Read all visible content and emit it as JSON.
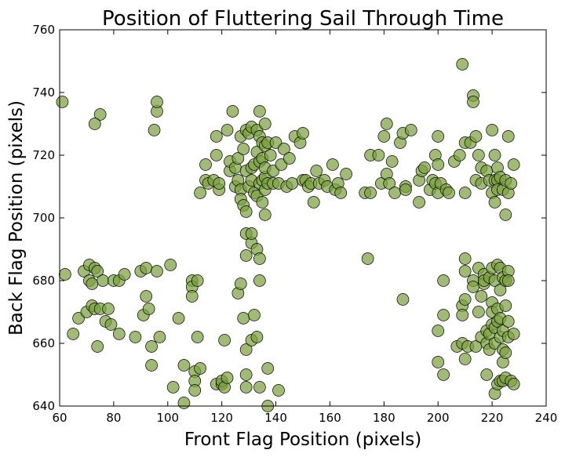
{
  "chart_data": {
    "type": "scatter",
    "title": "Position of Fluttering Sail Through Time",
    "xlabel": "Front Flag Position (pixels)",
    "ylabel": "Back Flag Position (pixels)",
    "xlim": [
      60,
      240
    ],
    "ylim": [
      640,
      760
    ],
    "xticks": [
      "60",
      "80",
      "100",
      "120",
      "140",
      "160",
      "180",
      "200",
      "220",
      "240"
    ],
    "yticks": [
      "640",
      "660",
      "680",
      "700",
      "720",
      "740",
      "760"
    ],
    "grid": false,
    "marker_color": "#7ba23f",
    "marker_alpha": 0.72,
    "points": [
      [
        61,
        737
      ],
      [
        62,
        682
      ],
      [
        65,
        663
      ],
      [
        67,
        668
      ],
      [
        69,
        683
      ],
      [
        70,
        670
      ],
      [
        71,
        680
      ],
      [
        71,
        685
      ],
      [
        72,
        672
      ],
      [
        72,
        679
      ],
      [
        73,
        671
      ],
      [
        73,
        684
      ],
      [
        74,
        683
      ],
      [
        74,
        659
      ],
      [
        75,
        671
      ],
      [
        75,
        733
      ],
      [
        73,
        730
      ],
      [
        76,
        680
      ],
      [
        77,
        667
      ],
      [
        78,
        671
      ],
      [
        79,
        666
      ],
      [
        80,
        680
      ],
      [
        82,
        680
      ],
      [
        82,
        663
      ],
      [
        84,
        682
      ],
      [
        88,
        662
      ],
      [
        90,
        683
      ],
      [
        91,
        669
      ],
      [
        92,
        675
      ],
      [
        92,
        684
      ],
      [
        93,
        671
      ],
      [
        94,
        653
      ],
      [
        94,
        659
      ],
      [
        96,
        683
      ],
      [
        97,
        662
      ],
      [
        95,
        728
      ],
      [
        96,
        734
      ],
      [
        96,
        737
      ],
      [
        101,
        685
      ],
      [
        102,
        646
      ],
      [
        104,
        668
      ],
      [
        106,
        653
      ],
      [
        106,
        641
      ],
      [
        109,
        680
      ],
      [
        109,
        678
      ],
      [
        109,
        675
      ],
      [
        110,
        651
      ],
      [
        110,
        648
      ],
      [
        110,
        645
      ],
      [
        111,
        680
      ],
      [
        111,
        662
      ],
      [
        112,
        652
      ],
      [
        112,
        708
      ],
      [
        114,
        712
      ],
      [
        114,
        717
      ],
      [
        115,
        711
      ],
      [
        117,
        712
      ],
      [
        118,
        647
      ],
      [
        118,
        726
      ],
      [
        118,
        720
      ],
      [
        119,
        709
      ],
      [
        119,
        711
      ],
      [
        120,
        647
      ],
      [
        120,
        648
      ],
      [
        121,
        661
      ],
      [
        121,
        646
      ],
      [
        122,
        649
      ],
      [
        122,
        728
      ],
      [
        123,
        715
      ],
      [
        123,
        718
      ],
      [
        124,
        734
      ],
      [
        125,
        710
      ],
      [
        125,
        716
      ],
      [
        126,
        676
      ],
      [
        126,
        712
      ],
      [
        126,
        719
      ],
      [
        127,
        679
      ],
      [
        127,
        726
      ],
      [
        127,
        709
      ],
      [
        127,
        706
      ],
      [
        128,
        668
      ],
      [
        128,
        704
      ],
      [
        128,
        722
      ],
      [
        129,
        650
      ],
      [
        129,
        646
      ],
      [
        129,
        658
      ],
      [
        129,
        688
      ],
      [
        129,
        695
      ],
      [
        129,
        702
      ],
      [
        129,
        715
      ],
      [
        129,
        728
      ],
      [
        130,
        710
      ],
      [
        130,
        727
      ],
      [
        131,
        661
      ],
      [
        131,
        692
      ],
      [
        131,
        695
      ],
      [
        131,
        712
      ],
      [
        131,
        716
      ],
      [
        131,
        729
      ],
      [
        132,
        669
      ],
      [
        132,
        717
      ],
      [
        132,
        708
      ],
      [
        133,
        662
      ],
      [
        133,
        690
      ],
      [
        133,
        707
      ],
      [
        133,
        721
      ],
      [
        133,
        728
      ],
      [
        134,
        646
      ],
      [
        134,
        680
      ],
      [
        134,
        687
      ],
      [
        134,
        711
      ],
      [
        134,
        718
      ],
      [
        134,
        726
      ],
      [
        134,
        734
      ],
      [
        135,
        712
      ],
      [
        135,
        705
      ],
      [
        135,
        719
      ],
      [
        135,
        724
      ],
      [
        136,
        701
      ],
      [
        136,
        709
      ],
      [
        136,
        713
      ],
      [
        136,
        716
      ],
      [
        136,
        723
      ],
      [
        136,
        730
      ],
      [
        137,
        640
      ],
      [
        137,
        652
      ],
      [
        137,
        711
      ],
      [
        137,
        724
      ],
      [
        138,
        720
      ],
      [
        139,
        715
      ],
      [
        139,
        711
      ],
      [
        140,
        724
      ],
      [
        141,
        645
      ],
      [
        141,
        711
      ],
      [
        142,
        717
      ],
      [
        143,
        722
      ],
      [
        144,
        710
      ],
      [
        145,
        719
      ],
      [
        146,
        711
      ],
      [
        147,
        726
      ],
      [
        149,
        724
      ],
      [
        150,
        727
      ],
      [
        150,
        712
      ],
      [
        151,
        712
      ],
      [
        152,
        710
      ],
      [
        153,
        711
      ],
      [
        154,
        705
      ],
      [
        155,
        715
      ],
      [
        156,
        711
      ],
      [
        158,
        712
      ],
      [
        159,
        710
      ],
      [
        161,
        717
      ],
      [
        162,
        709
      ],
      [
        163,
        711
      ],
      [
        164,
        708
      ],
      [
        166,
        714
      ],
      [
        173,
        708
      ],
      [
        174,
        687
      ],
      [
        175,
        708
      ],
      [
        175,
        720
      ],
      [
        178,
        720
      ],
      [
        179,
        711
      ],
      [
        180,
        726
      ],
      [
        181,
        714
      ],
      [
        181,
        730
      ],
      [
        182,
        711
      ],
      [
        183,
        718
      ],
      [
        184,
        708
      ],
      [
        186,
        724
      ],
      [
        187,
        727
      ],
      [
        187,
        674
      ],
      [
        188,
        710
      ],
      [
        188,
        709
      ],
      [
        190,
        728
      ],
      [
        193,
        705
      ],
      [
        193,
        712
      ],
      [
        194,
        715
      ],
      [
        195,
        716
      ],
      [
        197,
        709
      ],
      [
        198,
        712
      ],
      [
        199,
        711
      ],
      [
        199,
        720
      ],
      [
        200,
        664
      ],
      [
        200,
        654
      ],
      [
        200,
        708
      ],
      [
        200,
        717
      ],
      [
        200,
        726
      ],
      [
        201,
        711
      ],
      [
        202,
        650
      ],
      [
        202,
        669
      ],
      [
        202,
        680
      ],
      [
        203,
        709
      ],
      [
        204,
        708
      ],
      [
        206,
        718
      ],
      [
        207,
        659
      ],
      [
        208,
        720
      ],
      [
        209,
        749
      ],
      [
        209,
        672
      ],
      [
        209,
        669
      ],
      [
        209,
        660
      ],
      [
        210,
        708
      ],
      [
        210,
        687
      ],
      [
        210,
        683
      ],
      [
        210,
        674
      ],
      [
        210,
        655
      ],
      [
        210,
        724
      ],
      [
        211,
        659
      ],
      [
        212,
        724
      ],
      [
        213,
        739
      ],
      [
        213,
        737
      ],
      [
        213,
        680
      ],
      [
        213,
        678
      ],
      [
        214,
        712
      ],
      [
        214,
        659
      ],
      [
        214,
        726
      ],
      [
        215,
        720
      ],
      [
        215,
        684
      ],
      [
        215,
        670
      ],
      [
        216,
        675
      ],
      [
        216,
        716
      ],
      [
        216,
        711
      ],
      [
        216,
        662
      ],
      [
        217,
        682
      ],
      [
        217,
        679
      ],
      [
        217,
        680
      ],
      [
        218,
        715
      ],
      [
        218,
        664
      ],
      [
        218,
        650
      ],
      [
        218,
        660
      ],
      [
        219,
        712
      ],
      [
        219,
        681
      ],
      [
        219,
        658
      ],
      [
        219,
        663
      ],
      [
        220,
        728
      ],
      [
        220,
        708
      ],
      [
        220,
        684
      ],
      [
        220,
        673
      ],
      [
        220,
        666
      ],
      [
        220,
        670
      ],
      [
        221,
        720
      ],
      [
        221,
        712
      ],
      [
        221,
        680
      ],
      [
        221,
        665
      ],
      [
        221,
        660
      ],
      [
        221,
        644
      ],
      [
        221,
        705
      ],
      [
        222,
        716
      ],
      [
        222,
        712
      ],
      [
        222,
        709
      ],
      [
        222,
        685
      ],
      [
        222,
        671
      ],
      [
        222,
        667
      ],
      [
        222,
        647
      ],
      [
        223,
        648
      ],
      [
        223,
        713
      ],
      [
        223,
        684
      ],
      [
        223,
        677
      ],
      [
        223,
        668
      ],
      [
        223,
        662
      ],
      [
        224,
        709
      ],
      [
        224,
        681
      ],
      [
        224,
        664
      ],
      [
        224,
        654
      ],
      [
        224,
        648
      ],
      [
        224,
        658
      ],
      [
        225,
        701
      ],
      [
        225,
        680
      ],
      [
        225,
        712
      ],
      [
        225,
        672
      ],
      [
        225,
        657
      ],
      [
        225,
        649
      ],
      [
        226,
        683
      ],
      [
        226,
        726
      ],
      [
        226,
        708
      ],
      [
        226,
        680
      ],
      [
        226,
        667
      ],
      [
        226,
        662
      ],
      [
        227,
        711
      ],
      [
        227,
        648
      ],
      [
        228,
        717
      ],
      [
        228,
        663
      ],
      [
        228,
        647
      ]
    ]
  }
}
